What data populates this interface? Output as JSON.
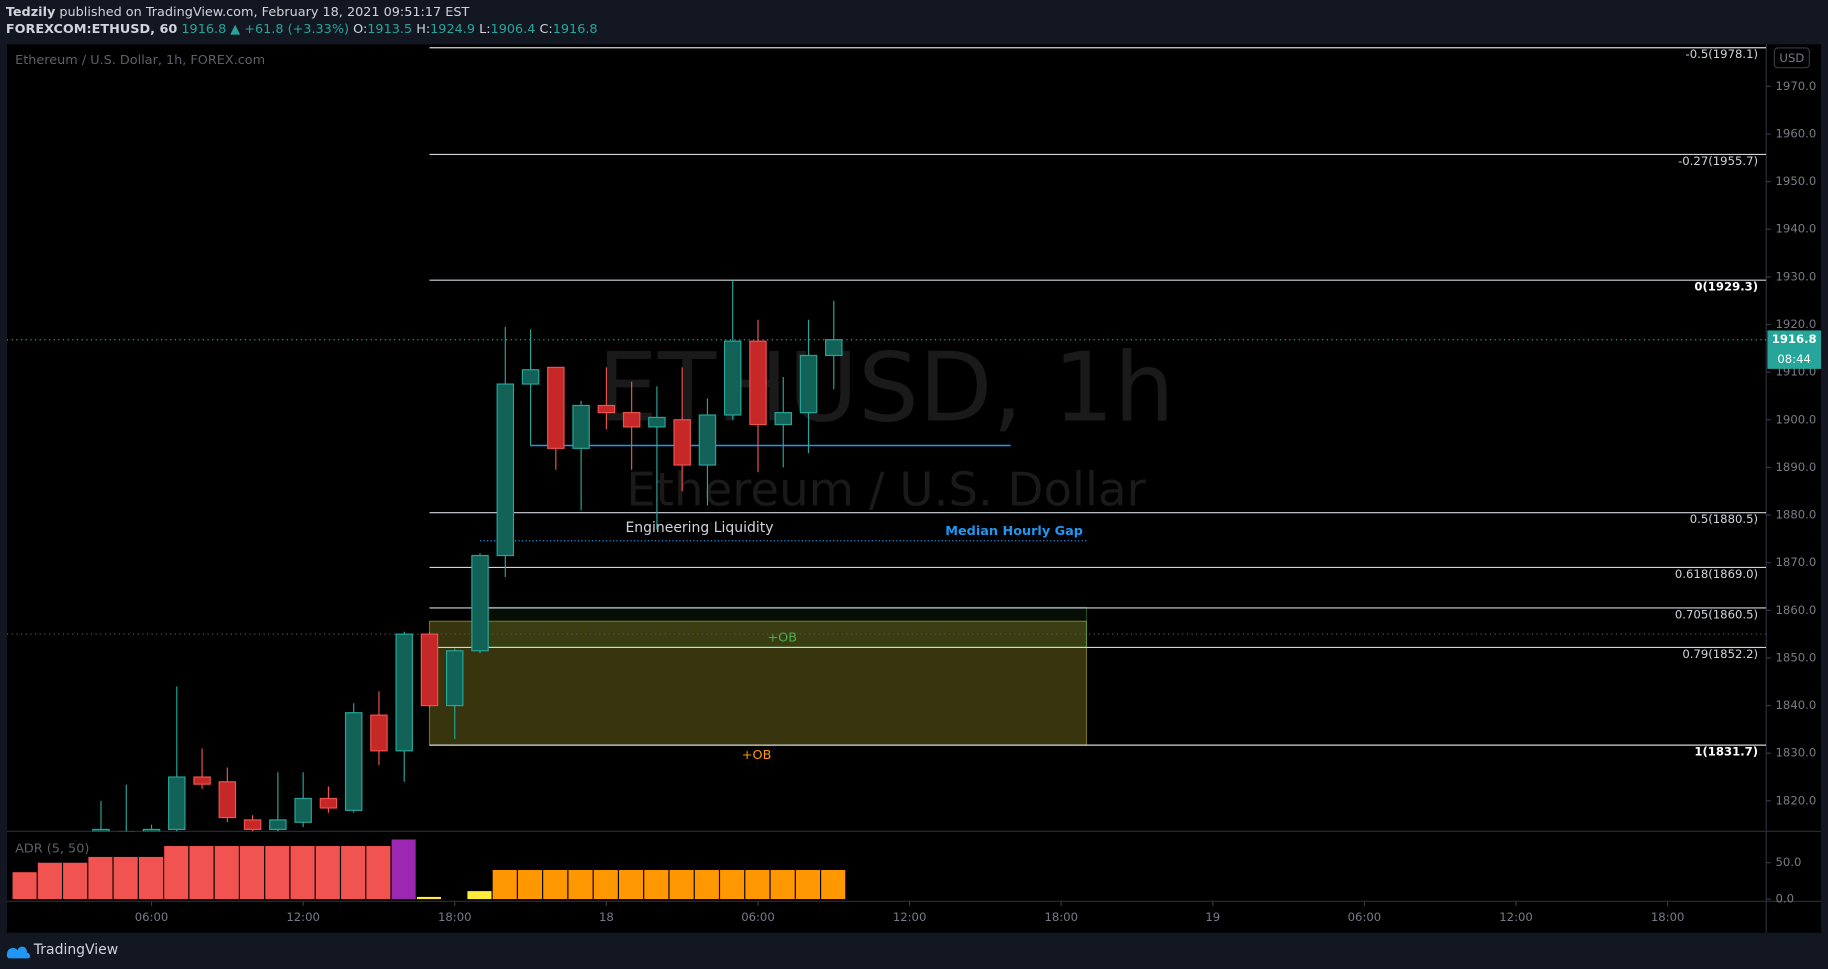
{
  "header": {
    "author": "Tedzily",
    "published": "published on TradingView.com, February 18, 2021 09:51:17 EST",
    "symbol": "FOREXCOM:ETHUSD, 60",
    "change": "1916.8 ▲ +61.8 (+3.33%)",
    "ohlc": [
      {
        "key": "O:",
        "value": "1913.5"
      },
      {
        "key": "H:",
        "value": "1924.9"
      },
      {
        "key": "L:",
        "value": "1906.4"
      },
      {
        "key": "C:",
        "value": "1916.8"
      }
    ]
  },
  "chart_data": [
    {
      "type": "candlestick",
      "title": "Ethereum / U.S. Dollar, 1h, FOREX.com",
      "watermark": "ETHUSD, 1h",
      "watermark_subtitle": "Ethereum / U.S. Dollar",
      "currency": "USD",
      "x": [
        4,
        5,
        6,
        7,
        8,
        9,
        10,
        11,
        12,
        13,
        14,
        15,
        16,
        17,
        18,
        19,
        20,
        21,
        22,
        23,
        24,
        25,
        26,
        27,
        28,
        29,
        30,
        31,
        32,
        33
      ],
      "open": [
        1813.5,
        1813.5,
        1813.5,
        1814,
        1825,
        1824,
        1816,
        1814,
        1815.5,
        1820.5,
        1818,
        1838,
        1830.5,
        1855,
        1840,
        1851.5,
        1871.5,
        1907.5,
        1911,
        1894,
        1903,
        1901.5,
        1898.5,
        1900,
        1890.5,
        1901,
        1916.5,
        1899,
        1901.5,
        1913.5
      ],
      "high": [
        1820,
        1823.4,
        1815,
        1844,
        1831,
        1827,
        1817,
        1826,
        1826,
        1823,
        1840.5,
        1843,
        1855.5,
        1855.5,
        1852,
        1872,
        1919.5,
        1919,
        1911,
        1904,
        1911,
        1908,
        1907,
        1911,
        1904.5,
        1929.3,
        1921,
        1909,
        1921,
        1925
      ],
      "low": [
        1812,
        1812,
        1812,
        1813,
        1822.5,
        1815.5,
        1813,
        1813.5,
        1814.5,
        1817.5,
        1817.5,
        1827.5,
        1824,
        1839.5,
        1833,
        1851,
        1867,
        1894.5,
        1889.5,
        1881,
        1898,
        1889.5,
        1877,
        1885,
        1882,
        1900,
        1889,
        1890,
        1893,
        1906.4
      ],
      "close": [
        1814,
        1813.5,
        1814,
        1825,
        1823.5,
        1816.5,
        1814,
        1816,
        1820.5,
        1818.5,
        1838.5,
        1830.5,
        1855,
        1840,
        1851.5,
        1871.5,
        1907.5,
        1910.5,
        1894,
        1903,
        1901.5,
        1898.5,
        1900.5,
        1890.5,
        1901,
        1916.5,
        1899,
        1901.5,
        1913.5,
        1916.8
      ],
      "up_color": "#26a69a",
      "down_color": "#ef5350",
      "xlim": [
        0.28,
        69.9
      ],
      "xticks": [
        {
          "value": 6,
          "label": "06:00"
        },
        {
          "value": 12,
          "label": "12:00"
        },
        {
          "value": 18,
          "label": "18:00"
        },
        {
          "value": 24,
          "label": "18"
        },
        {
          "value": 30,
          "label": "06:00"
        },
        {
          "value": 36,
          "label": "12:00"
        },
        {
          "value": 42,
          "label": "18:00"
        },
        {
          "value": 48,
          "label": "19"
        },
        {
          "value": 54,
          "label": "06:00"
        },
        {
          "value": 60,
          "label": "12:00"
        },
        {
          "value": 66,
          "label": "18:00"
        }
      ],
      "ylim": [
        1813.6,
        1978.8
      ],
      "yticks": [
        {
          "value": 1820,
          "label": "1820.0"
        },
        {
          "value": 1830,
          "label": "1830.0"
        },
        {
          "value": 1840,
          "label": "1840.0"
        },
        {
          "value": 1850,
          "label": "1850.0"
        },
        {
          "value": 1860,
          "label": "1860.0"
        },
        {
          "value": 1870,
          "label": "1870.0"
        },
        {
          "value": 1880,
          "label": "1880.0"
        },
        {
          "value": 1890,
          "label": "1890.0"
        },
        {
          "value": 1900,
          "label": "1900.0"
        },
        {
          "value": 1910,
          "label": "1910.0"
        },
        {
          "value": 1920,
          "label": "1920.0"
        },
        {
          "value": 1930,
          "label": "1930.0"
        },
        {
          "value": 1940,
          "label": "1940.0"
        },
        {
          "value": 1950,
          "label": "1950.0"
        },
        {
          "value": 1960,
          "label": "1960.0"
        },
        {
          "value": 1970,
          "label": "1970.0"
        }
      ],
      "last_price": {
        "value": 1916.8,
        "label": "1916.8",
        "countdown": "08:44"
      },
      "fib_start": 17,
      "fib_levels": [
        {
          "value": 1978.1,
          "label": "-0.5(1978.1)"
        },
        {
          "value": 1955.7,
          "label": "-0.27(1955.7)"
        },
        {
          "value": 1929.3,
          "label": "0(1929.3)"
        },
        {
          "value": 1880.5,
          "label": "0.5(1880.5)"
        },
        {
          "value": 1869.0,
          "label": "0.618(1869.0)"
        },
        {
          "value": 1860.5,
          "label": "0.705(1860.5)"
        },
        {
          "value": 1852.2,
          "label": "0.79(1852.2)"
        },
        {
          "value": 1831.7,
          "label": "1(1831.7)"
        }
      ],
      "zones": [
        {
          "label": "+OB",
          "top": 1857.7,
          "bottom": 1831.7,
          "start": 17,
          "end": 43,
          "color": "#ffeb3b",
          "label_color": "#ff9800"
        },
        {
          "label": "+OB",
          "top": 1860.6,
          "bottom": 1852.3,
          "start": 19,
          "end": 43,
          "color": "#4caf50",
          "label_color": "#4caf50"
        }
      ],
      "lines": [
        {
          "value": 1894.6,
          "start": 21,
          "end": 40,
          "color": "#2196f3"
        },
        {
          "label": "Median Hourly Gap",
          "value": 1874.6,
          "start": 19,
          "end": 43,
          "color": "#2196f3"
        }
      ],
      "annotation": "Engineering Liquidity"
    },
    {
      "type": "bar",
      "title": "ADR (5, 50)",
      "x": [
        1,
        2,
        3,
        4,
        5,
        6,
        7,
        8,
        9,
        10,
        11,
        12,
        13,
        14,
        15,
        16,
        17,
        18,
        19,
        20,
        21,
        22,
        23,
        24,
        25,
        26,
        27,
        28,
        29,
        30,
        31,
        32,
        33
      ],
      "values": [
        37,
        50,
        50,
        58,
        58,
        58,
        73,
        73,
        73,
        73,
        73,
        73,
        73,
        73,
        73,
        82,
        3,
        null,
        11,
        40,
        40,
        40,
        40,
        40,
        40,
        40,
        40,
        40,
        40,
        40,
        40,
        40,
        40
      ],
      "colors": [
        "#f05350",
        "#f05350",
        "#f05350",
        "#f05350",
        "#f05350",
        "#f05350",
        "#f05350",
        "#f05350",
        "#f05350",
        "#f05350",
        "#f05350",
        "#f05350",
        "#f05350",
        "#f05350",
        "#f05350",
        "#9c27b0",
        "#ffeb3b",
        "#ffeb3b",
        "#ffeb3b",
        "#ff9800",
        "#ff9800",
        "#ff9800",
        "#ff9800",
        "#ff9800",
        "#ff9800",
        "#ff9800",
        "#ff9800",
        "#ff9800",
        "#ff9800",
        "#ff9800",
        "#ff9800",
        "#ff9800",
        "#ff9800"
      ],
      "ylim": [
        -3,
        90
      ],
      "yticks": [
        {
          "value": 50,
          "label": "50.0"
        },
        {
          "value": 0,
          "label": "0.0"
        }
      ]
    }
  ],
  "footer": {
    "brand": "TradingView"
  }
}
